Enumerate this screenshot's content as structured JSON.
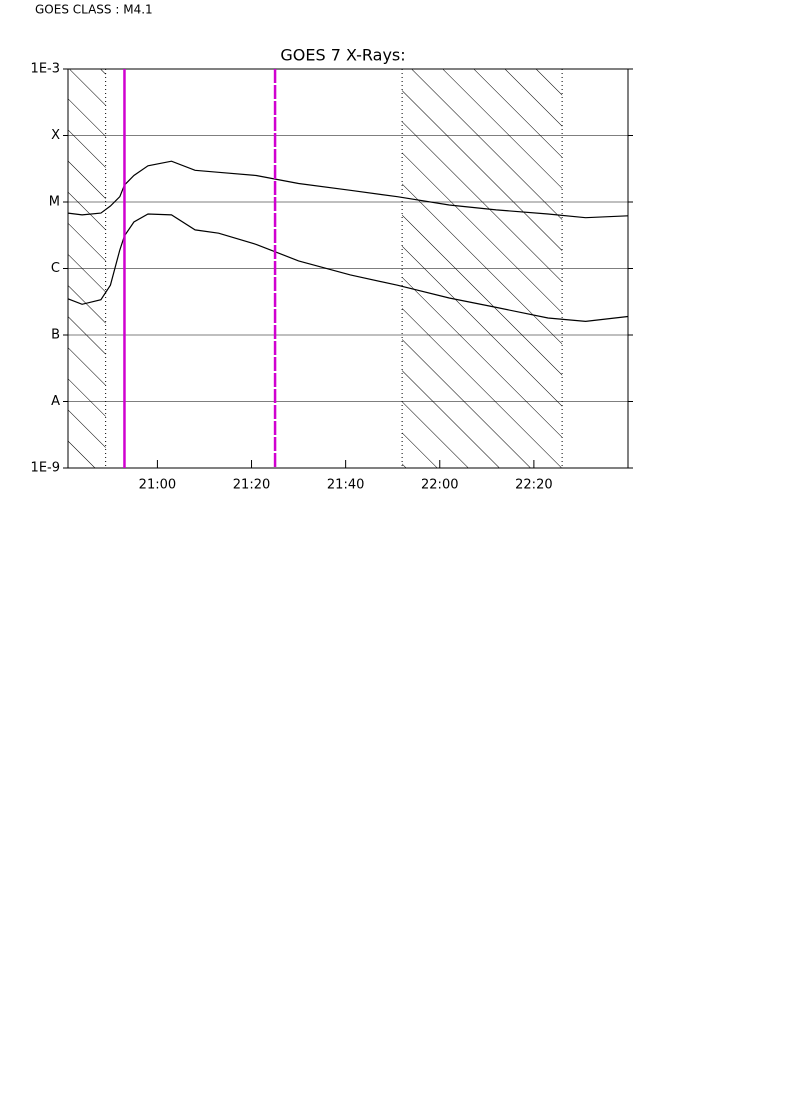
{
  "header": "GOES CLASS : M4.1",
  "chart_data": {
    "type": "line",
    "title": "GOES 7 X-Rays:",
    "log_y": true,
    "grid": true,
    "x": [
      "20:41",
      "20:44",
      "20:48",
      "20:50",
      "20:52",
      "20:53",
      "20:55",
      "20:58",
      "21:03",
      "21:08",
      "21:13",
      "21:21",
      "21:30",
      "21:41",
      "21:51",
      "22:02",
      "22:12",
      "22:23",
      "22:31",
      "22:40"
    ],
    "series": [
      {
        "color": "#000000",
        "values": [
          6.8e-06,
          6.4e-06,
          6.8e-06,
          8.7e-06,
          1.2e-05,
          1.8e-05,
          2.5e-05,
          3.5e-05,
          4.1e-05,
          3e-05,
          2.8e-05,
          2.5e-05,
          1.9e-05,
          1.5e-05,
          1.2e-05,
          9e-06,
          7.6e-06,
          6.6e-06,
          5.8e-06,
          6.2e-06
        ]
      },
      {
        "color": "#000000",
        "values": [
          3.5e-07,
          2.9e-07,
          3.4e-07,
          5.6e-07,
          1.9e-06,
          3.1e-06,
          5e-06,
          6.6e-06,
          6.4e-06,
          3.8e-06,
          3.4e-06,
          2.3e-06,
          1.3e-06,
          8e-07,
          5.6e-07,
          3.6e-07,
          2.6e-07,
          1.8e-07,
          1.6e-07,
          1.9e-07
        ]
      }
    ],
    "xlim": [
      "20:41",
      "22:40"
    ],
    "xticks": [
      "21:00",
      "21:20",
      "21:40",
      "22:00",
      "22:20"
    ],
    "ylim": [
      1e-09,
      0.001
    ],
    "yticks": [
      {
        "value": 1e-09,
        "label": "1E-9"
      },
      {
        "value": 1e-08,
        "label": "A"
      },
      {
        "value": 1e-07,
        "label": "B"
      },
      {
        "value": 1e-06,
        "label": "C"
      },
      {
        "value": 1e-05,
        "label": "M"
      },
      {
        "value": 0.0001,
        "label": "X"
      },
      {
        "value": 0.001,
        "label": "1E-3"
      }
    ],
    "hatched": [
      [
        "20:41",
        "20:49"
      ],
      [
        "21:52",
        "22:26"
      ]
    ],
    "vlines": [
      {
        "x": "20:53",
        "color": "#d000d0",
        "style": "solid"
      },
      {
        "x": "21:25",
        "color": "#d000d0",
        "style": "dashed"
      }
    ]
  }
}
